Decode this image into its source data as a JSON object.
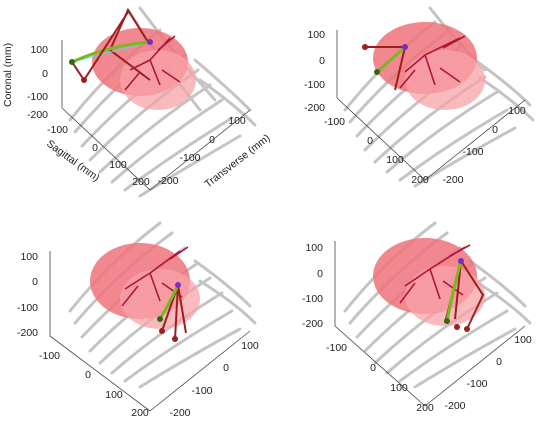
{
  "colors": {
    "lung": "#f0737b",
    "lung_light": "#f7a3a8",
    "vessel": "#b0143a",
    "bone": "#bdbdbd",
    "tool_dark_red": "#9a1f1f",
    "tool_green": "#7bb81f",
    "tool_purple": "#7b2cc4",
    "tool_cyan": "#55d8e0"
  },
  "axes": {
    "coronal_label": "Coronal (mm)",
    "sagittal_label": "Sagittal (mm)",
    "transverse_label": "Transverse (mm)",
    "coronal_ticks": [
      "100",
      "0",
      "-100",
      "-200"
    ],
    "sagittal_ticks": [
      "-200",
      "-100",
      "0",
      "100",
      "200"
    ],
    "transverse_ticks": [
      "100",
      "0",
      "-100",
      "-200"
    ]
  },
  "panels": [
    {
      "id": "top-left",
      "show_axis_labels": true
    },
    {
      "id": "top-right",
      "show_axis_labels": false
    },
    {
      "id": "bottom-left",
      "show_axis_labels": false
    },
    {
      "id": "bottom-right",
      "show_axis_labels": false
    }
  ]
}
